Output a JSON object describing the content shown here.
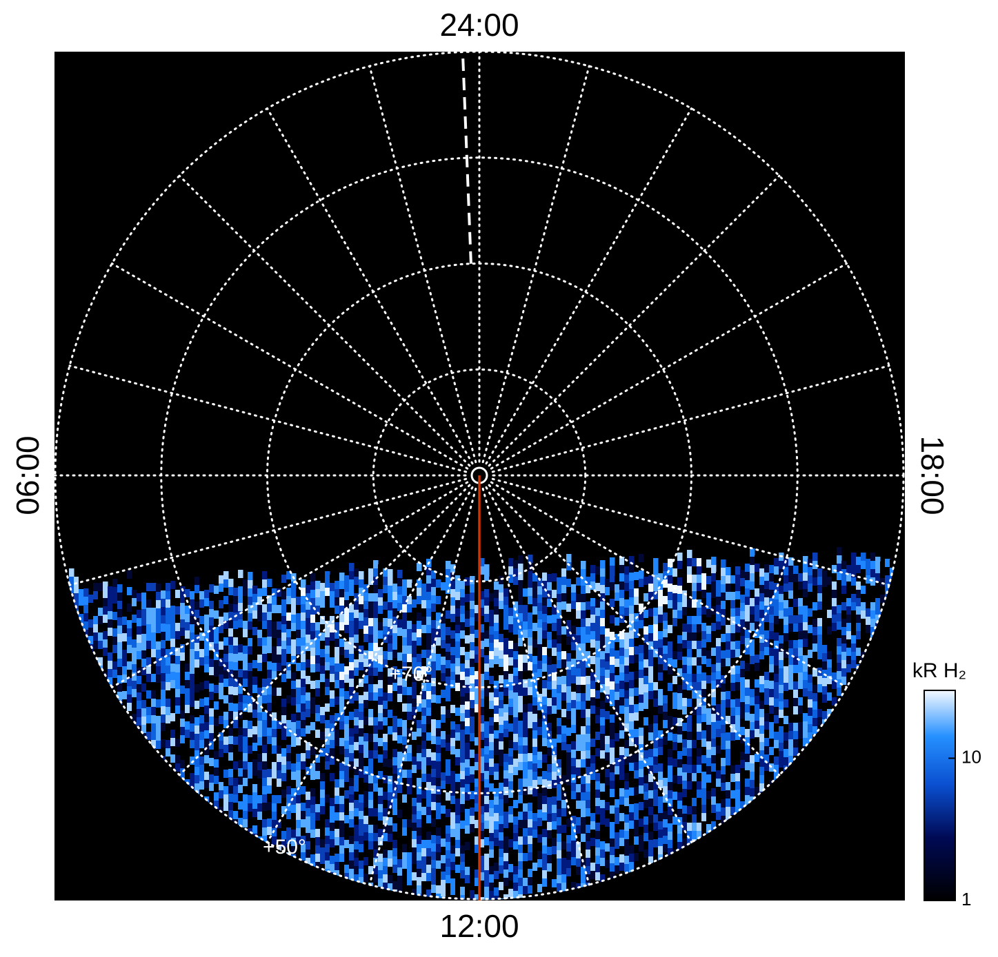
{
  "chart_data": {
    "type": "polar",
    "local_time_ticks": [
      {
        "value": 0,
        "label": "24:00"
      },
      {
        "value": 6,
        "label": "06:00"
      },
      {
        "value": 12,
        "label": "12:00"
      },
      {
        "value": 18,
        "label": "18:00"
      }
    ],
    "theta_grid": 24,
    "rlim": [
      90,
      50
    ],
    "rticks": [
      {
        "value": 80,
        "label": null
      },
      {
        "value": 70,
        "label": "+70°"
      },
      {
        "value": 60,
        "label": null
      },
      {
        "value": 50,
        "label": "+50°"
      }
    ],
    "markers": [
      {
        "hour": 0.15,
        "color": "#ffffff",
        "style": "dashed"
      },
      {
        "hour": 12,
        "color": "#cc3300",
        "style": "solid"
      }
    ],
    "colorbar": {
      "label": "kR H₂",
      "scale": "log",
      "clim": [
        1,
        30
      ],
      "ticks": [
        1,
        10
      ]
    }
  }
}
